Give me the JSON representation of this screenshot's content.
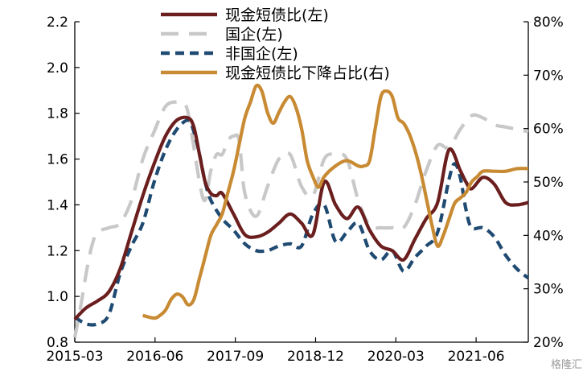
{
  "chart_data": {
    "type": "line",
    "title": "",
    "x_tick_labels": [
      "2015-03",
      "2016-06",
      "2017-09",
      "2018-12",
      "2020-03",
      "2021-06"
    ],
    "y_left": {
      "ticks": [
        "0.8",
        "1.0",
        "1.2",
        "1.4",
        "1.6",
        "1.8",
        "2.0",
        "2.2"
      ],
      "ylim": [
        0.8,
        2.2
      ]
    },
    "y_right": {
      "ticks": [
        "20%",
        "30%",
        "40%",
        "50%",
        "60%",
        "70%",
        "80%"
      ],
      "ylim": [
        20,
        80
      ]
    },
    "x_range": [
      0,
      80
    ],
    "legend_position": "top-center",
    "grid": false,
    "series": [
      {
        "name": "现金短债比(左)",
        "axis": "left",
        "color": "#6b1e1e",
        "dash": "solid",
        "x": [
          0,
          2,
          4,
          6,
          8,
          10,
          12,
          14,
          16,
          18,
          20,
          21,
          22,
          23,
          24,
          25,
          26,
          28,
          30,
          32,
          34,
          36,
          38,
          40,
          42,
          44,
          46,
          48,
          50,
          52,
          54,
          56,
          58,
          60,
          62,
          64,
          66,
          68,
          69,
          70,
          72,
          74,
          76,
          78,
          80
        ],
        "values": [
          0.9,
          0.95,
          0.98,
          1.02,
          1.12,
          1.28,
          1.44,
          1.58,
          1.7,
          1.77,
          1.78,
          1.74,
          1.62,
          1.5,
          1.45,
          1.44,
          1.45,
          1.36,
          1.27,
          1.26,
          1.28,
          1.32,
          1.36,
          1.32,
          1.27,
          1.5,
          1.4,
          1.34,
          1.39,
          1.29,
          1.22,
          1.2,
          1.16,
          1.25,
          1.34,
          1.41,
          1.64,
          1.55,
          1.5,
          1.47,
          1.52,
          1.49,
          1.41,
          1.4,
          1.41
        ]
      },
      {
        "name": "国企(左)",
        "axis": "left",
        "color": "#c8c8c8",
        "dash": "long",
        "x": [
          0,
          1,
          2,
          3,
          4,
          6,
          8,
          10,
          12,
          14,
          16,
          18,
          19,
          20,
          22,
          23,
          24,
          25,
          26,
          27,
          28,
          29,
          30,
          32,
          34,
          36,
          38,
          40,
          42,
          44,
          46,
          48,
          50,
          52,
          54,
          56,
          58,
          60,
          62,
          64,
          66,
          68,
          70,
          72,
          74,
          76,
          78,
          80
        ],
        "values": [
          0.82,
          0.95,
          1.1,
          1.22,
          1.28,
          1.3,
          1.32,
          1.42,
          1.6,
          1.72,
          1.83,
          1.85,
          1.84,
          1.8,
          1.5,
          1.42,
          1.55,
          1.62,
          1.62,
          1.68,
          1.7,
          1.68,
          1.45,
          1.35,
          1.48,
          1.6,
          1.62,
          1.48,
          1.44,
          1.6,
          1.62,
          1.6,
          1.42,
          1.31,
          1.3,
          1.3,
          1.3,
          1.4,
          1.55,
          1.66,
          1.65,
          1.73,
          1.79,
          1.78,
          1.75,
          1.74,
          1.73,
          1.72
        ]
      },
      {
        "name": "非国企(左)",
        "axis": "left",
        "color": "#1f4a72",
        "dash": "short",
        "x": [
          0,
          2,
          4,
          6,
          8,
          10,
          12,
          14,
          16,
          18,
          20,
          21,
          22,
          23,
          24,
          26,
          28,
          30,
          32,
          34,
          36,
          38,
          40,
          42,
          44,
          46,
          48,
          50,
          52,
          54,
          56,
          58,
          60,
          62,
          64,
          66,
          67,
          68,
          69,
          70,
          72,
          74,
          76,
          78,
          80
        ],
        "values": [
          0.91,
          0.88,
          0.88,
          0.92,
          1.1,
          1.22,
          1.32,
          1.5,
          1.64,
          1.73,
          1.77,
          1.72,
          1.62,
          1.5,
          1.42,
          1.34,
          1.29,
          1.23,
          1.2,
          1.2,
          1.22,
          1.23,
          1.22,
          1.36,
          1.4,
          1.24,
          1.28,
          1.32,
          1.2,
          1.16,
          1.2,
          1.11,
          1.17,
          1.22,
          1.28,
          1.51,
          1.58,
          1.52,
          1.38,
          1.3,
          1.3,
          1.26,
          1.18,
          1.12,
          1.08
        ]
      },
      {
        "name": "现金短债比下降占比(右)",
        "axis": "right",
        "color": "#c88a32",
        "dash": "solid",
        "x": [
          12,
          14,
          15,
          16,
          17,
          18,
          19,
          20,
          21,
          22,
          23,
          24,
          25,
          26,
          27,
          28,
          29,
          30,
          31,
          32,
          33,
          34,
          35,
          36,
          37,
          38,
          39,
          40,
          41,
          42,
          43,
          44,
          46,
          48,
          50,
          51,
          52,
          53,
          54,
          55,
          56,
          57,
          58,
          59,
          60,
          61,
          62,
          63,
          64,
          65,
          66,
          67,
          68,
          69,
          70,
          71,
          72,
          74,
          76,
          78,
          80
        ],
        "values": [
          25,
          24.5,
          25,
          26,
          28,
          29,
          28.5,
          27,
          28,
          32,
          36,
          40,
          42,
          44,
          48,
          52,
          57,
          62,
          65,
          68,
          67,
          63,
          61,
          63,
          65,
          66,
          64,
          60,
          54,
          51,
          49,
          51,
          53,
          54,
          53,
          53,
          54,
          60,
          66,
          67,
          66,
          62,
          61,
          59,
          56,
          52,
          47,
          42,
          38,
          40,
          43,
          46,
          47,
          48,
          50,
          51,
          52,
          52,
          52,
          52.5,
          52.5
        ]
      }
    ]
  },
  "watermark": "格隆汇"
}
